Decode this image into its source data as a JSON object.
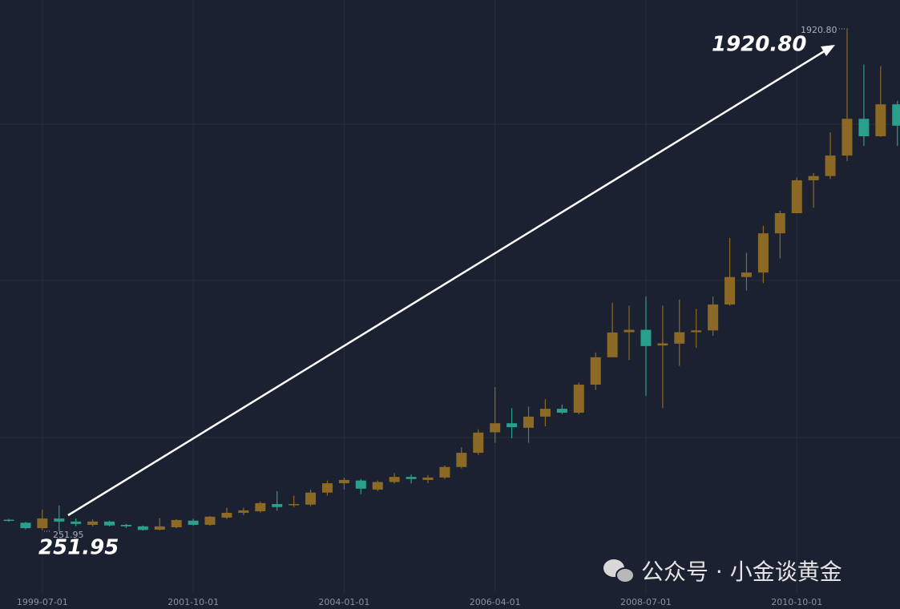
{
  "chart_data": {
    "type": "candlestick",
    "categories": [
      null,
      null,
      "1999-07-01",
      null,
      null,
      null,
      null,
      null,
      null,
      null,
      null,
      "2001-10-01",
      null,
      null,
      null,
      null,
      null,
      null,
      null,
      null,
      "2004-01-01",
      null,
      null,
      null,
      null,
      null,
      null,
      null,
      null,
      "2006-04-01",
      null,
      null,
      null,
      null,
      null,
      null,
      null,
      null,
      "2008-07-01",
      null,
      null,
      null,
      null,
      null,
      null,
      null,
      null,
      "2010-10-01",
      null,
      null,
      null,
      null,
      null,
      null
    ],
    "open": [
      290,
      280,
      262,
      294,
      284,
      273,
      284,
      273,
      268,
      257,
      265,
      287,
      273,
      297,
      313,
      318,
      342,
      338,
      340,
      380,
      411,
      420,
      390,
      415,
      432,
      422,
      430,
      465,
      512,
      580,
      610,
      595,
      632,
      658,
      645,
      738,
      829,
      912,
      920,
      868,
      874,
      912,
      918,
      1004,
      1095,
      1110,
      1240,
      1307,
      1416,
      1430,
      1498,
      1620,
      1562,
      1668
    ],
    "high": [
      293,
      283,
      324,
      337,
      294,
      292,
      287,
      276,
      271,
      295,
      292,
      293,
      302,
      330,
      330,
      350,
      385,
      370,
      390,
      420,
      430,
      425,
      420,
      445,
      440,
      438,
      470,
      530,
      590,
      730,
      660,
      665,
      690,
      672,
      745,
      845,
      1010,
      1000,
      1030,
      1000,
      1020,
      990,
      1030,
      1225,
      1175,
      1265,
      1315,
      1425,
      1440,
      1575,
      1920.8,
      1800,
      1795,
      1680
    ],
    "low": [
      283,
      258,
      255,
      251.95,
      268,
      268,
      268,
      263,
      254,
      255,
      262,
      270,
      270,
      292,
      305,
      314,
      320,
      332,
      335,
      370,
      390,
      375,
      385,
      410,
      410,
      411,
      425,
      460,
      505,
      545,
      560,
      545,
      600,
      640,
      640,
      720,
      830,
      820,
      700,
      660,
      800,
      860,
      900,
      1000,
      1050,
      1075,
      1157,
      1315,
      1325,
      1420,
      1480,
      1530,
      1560,
      1530
    ],
    "close": [
      286,
      262,
      294,
      284,
      276,
      284,
      271,
      268,
      256,
      268,
      289,
      273,
      300,
      313,
      321,
      345,
      332,
      342,
      380,
      411,
      422,
      393,
      415,
      432,
      425,
      430,
      465,
      512,
      579,
      610,
      597,
      632,
      658,
      645,
      738,
      829,
      911,
      920,
      866,
      875,
      912,
      918,
      1004,
      1095,
      1110,
      1240,
      1307,
      1416,
      1430,
      1498,
      1620,
      1562,
      1668,
      1597
    ],
    "up_color": "#8c6a26",
    "down_color": "#28a08c",
    "ylim": [
      47,
      2014
    ],
    "grid": true,
    "annotations": [
      {
        "value": 1920.8,
        "label": "1920.80"
      },
      {
        "value": 251.95,
        "label": "251.95"
      }
    ],
    "watermark": "公众号 · 小金谈黄金"
  }
}
